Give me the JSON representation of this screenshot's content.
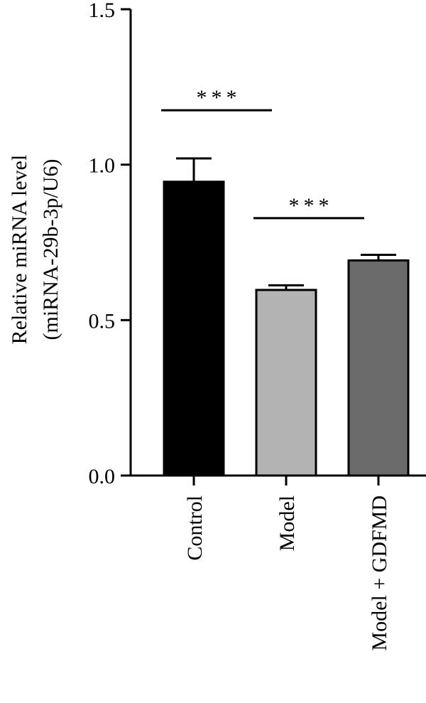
{
  "chart_data": {
    "type": "bar",
    "title": "",
    "ylabel": [
      "Relative miRNA level",
      "(miRNA-29b-3p/U6)"
    ],
    "xlabel": "",
    "ylim": [
      0,
      1.5
    ],
    "yticks": [
      0.0,
      0.5,
      1.0,
      1.5
    ],
    "ytick_labels": [
      "0.0",
      "0.5",
      "1.0",
      "1.5"
    ],
    "categories": [
      "Control",
      "Model",
      "Model + GDFMD"
    ],
    "values": [
      0.945,
      0.597,
      0.692
    ],
    "errors": [
      0.075,
      0.015,
      0.018
    ],
    "colors": [
      "#000000",
      "#b3b3b3",
      "#6b6b6b"
    ],
    "significance": [
      {
        "from": 0,
        "to": 1,
        "label": "***",
        "y": 1.175
      },
      {
        "from": 1,
        "to": 2,
        "label": "***",
        "y": 0.828
      }
    ],
    "grid": false,
    "legend": "none"
  }
}
